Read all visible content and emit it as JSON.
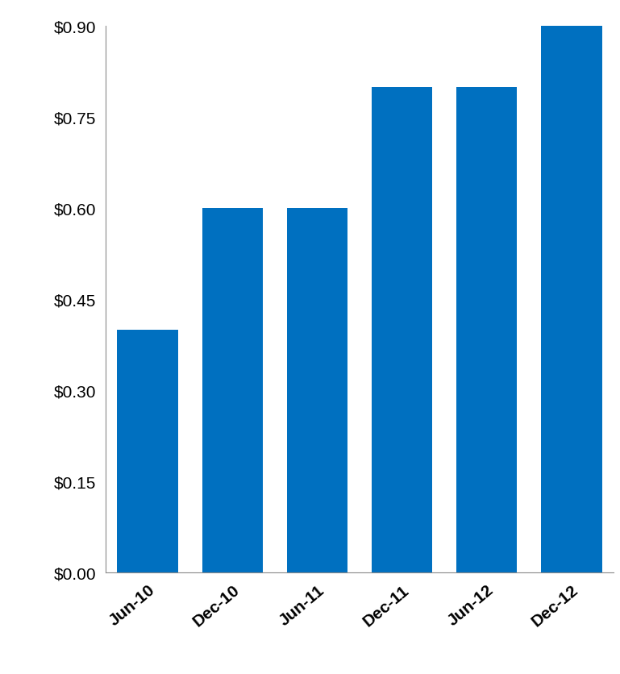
{
  "chart_data": {
    "type": "bar",
    "categories": [
      "Jun-10",
      "Dec-10",
      "Jun-11",
      "Dec-11",
      "Jun-12",
      "Dec-12"
    ],
    "values": [
      0.4,
      0.6,
      0.6,
      0.8,
      0.8,
      0.9
    ],
    "color": "#0070c0",
    "ylim": [
      0,
      0.9
    ],
    "yticks": [
      {
        "value": 0,
        "label": "$0.00"
      },
      {
        "value": 0.15,
        "label": "$0.15"
      },
      {
        "value": 0.3,
        "label": "$0.30"
      },
      {
        "value": 0.45,
        "label": "$0.45"
      },
      {
        "value": 0.6,
        "label": "$0.60"
      },
      {
        "value": 0.75,
        "label": "$0.75"
      },
      {
        "value": 0.9,
        "label": "$0.90"
      }
    ],
    "grid": false
  }
}
